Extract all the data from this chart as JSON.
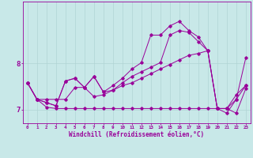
{
  "xlabel": "Windchill (Refroidissement éolien,°C)",
  "background_color": "#c8e8e8",
  "grid_color": "#b0d4d4",
  "line_color": "#990099",
  "x_hours": [
    0,
    1,
    2,
    3,
    4,
    5,
    6,
    7,
    8,
    9,
    10,
    11,
    12,
    13,
    14,
    15,
    16,
    17,
    18,
    19,
    20,
    21,
    22,
    23
  ],
  "line_min": [
    7.58,
    7.22,
    7.05,
    7.02,
    7.02,
    7.02,
    7.02,
    7.02,
    7.02,
    7.02,
    7.02,
    7.02,
    7.02,
    7.02,
    7.02,
    7.02,
    7.02,
    7.02,
    7.02,
    7.02,
    7.02,
    7.02,
    6.92,
    7.45
  ],
  "line_low": [
    7.58,
    7.22,
    7.22,
    7.22,
    7.22,
    7.48,
    7.48,
    7.28,
    7.32,
    7.42,
    7.52,
    7.58,
    7.68,
    7.78,
    7.88,
    7.98,
    8.08,
    8.18,
    8.22,
    8.28,
    7.02,
    7.02,
    7.32,
    7.52
  ],
  "line_mid": [
    7.58,
    7.22,
    7.15,
    7.08,
    7.62,
    7.68,
    7.48,
    7.72,
    7.38,
    7.42,
    7.58,
    7.72,
    7.82,
    7.92,
    8.02,
    8.62,
    8.72,
    8.68,
    8.48,
    8.28,
    7.02,
    7.02,
    7.22,
    7.52
  ],
  "line_high": [
    7.58,
    7.22,
    7.15,
    7.08,
    7.62,
    7.68,
    7.48,
    7.72,
    7.38,
    7.52,
    7.68,
    7.88,
    8.02,
    8.62,
    8.62,
    8.82,
    8.92,
    8.72,
    8.58,
    8.28,
    7.02,
    6.92,
    7.22,
    8.12
  ],
  "ylim": [
    6.7,
    9.35
  ],
  "yticks": [
    7,
    8
  ],
  "xlim_min": -0.5,
  "xlim_max": 23.5,
  "figsize": [
    3.2,
    2.0
  ],
  "dpi": 100
}
